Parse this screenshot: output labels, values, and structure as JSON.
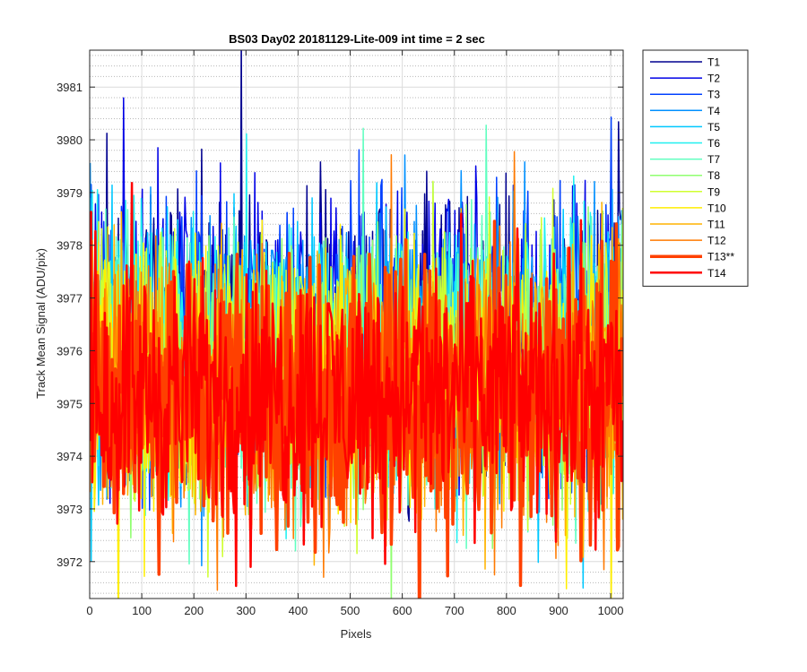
{
  "chart_data": {
    "type": "line",
    "title": "BS03 Day02 20181129-Lite-009 int time = 2 sec",
    "xlabel": "Pixels",
    "ylabel": "Track Mean Signal (ADU/pix)",
    "xlim": [
      0,
      1024
    ],
    "ylim": [
      3971.3,
      3981.7
    ],
    "x_ticks": [
      0,
      100,
      200,
      300,
      400,
      500,
      600,
      700,
      800,
      900,
      1000
    ],
    "y_ticks": [
      3972,
      3973,
      3974,
      3975,
      3976,
      3977,
      3978,
      3979,
      3980,
      3981
    ],
    "grid": true,
    "minor_grid_y": true,
    "legend_position": "outside-right",
    "x_range": [
      1,
      1024
    ],
    "series": [
      {
        "name": "T1",
        "color": "#00008f",
        "mean": 3976.4,
        "amplitude": 1.7,
        "width": 1.5
      },
      {
        "name": "T2",
        "color": "#0000e6",
        "mean": 3976.3,
        "amplitude": 1.7,
        "width": 1.5
      },
      {
        "name": "T3",
        "color": "#0040ff",
        "mean": 3976.2,
        "amplitude": 1.7,
        "width": 1.5
      },
      {
        "name": "T4",
        "color": "#0090ff",
        "mean": 3976.1,
        "amplitude": 1.7,
        "width": 1.5
      },
      {
        "name": "T5",
        "color": "#00c8ff",
        "mean": 3976.0,
        "amplitude": 1.7,
        "width": 1.5
      },
      {
        "name": "T6",
        "color": "#20f0f0",
        "mean": 3975.9,
        "amplitude": 1.7,
        "width": 1.5
      },
      {
        "name": "T7",
        "color": "#60ffc0",
        "mean": 3975.8,
        "amplitude": 1.7,
        "width": 1.5
      },
      {
        "name": "T8",
        "color": "#90ff70",
        "mean": 3975.7,
        "amplitude": 1.7,
        "width": 1.5
      },
      {
        "name": "T9",
        "color": "#d0ff30",
        "mean": 3975.6,
        "amplitude": 1.7,
        "width": 1.5
      },
      {
        "name": "T10",
        "color": "#ffee00",
        "mean": 3975.5,
        "amplitude": 1.7,
        "width": 1.5
      },
      {
        "name": "T11",
        "color": "#ffb300",
        "mean": 3975.4,
        "amplitude": 1.7,
        "width": 1.5
      },
      {
        "name": "T12",
        "color": "#ff7a00",
        "mean": 3975.3,
        "amplitude": 1.7,
        "width": 1.5
      },
      {
        "name": "T13**",
        "color": "#ff4000",
        "mean": 3975.2,
        "amplitude": 1.8,
        "width": 3.5
      },
      {
        "name": "T14",
        "color": "#ff0000",
        "mean": 3975.2,
        "amplitude": 1.6,
        "width": 2.5
      }
    ]
  }
}
